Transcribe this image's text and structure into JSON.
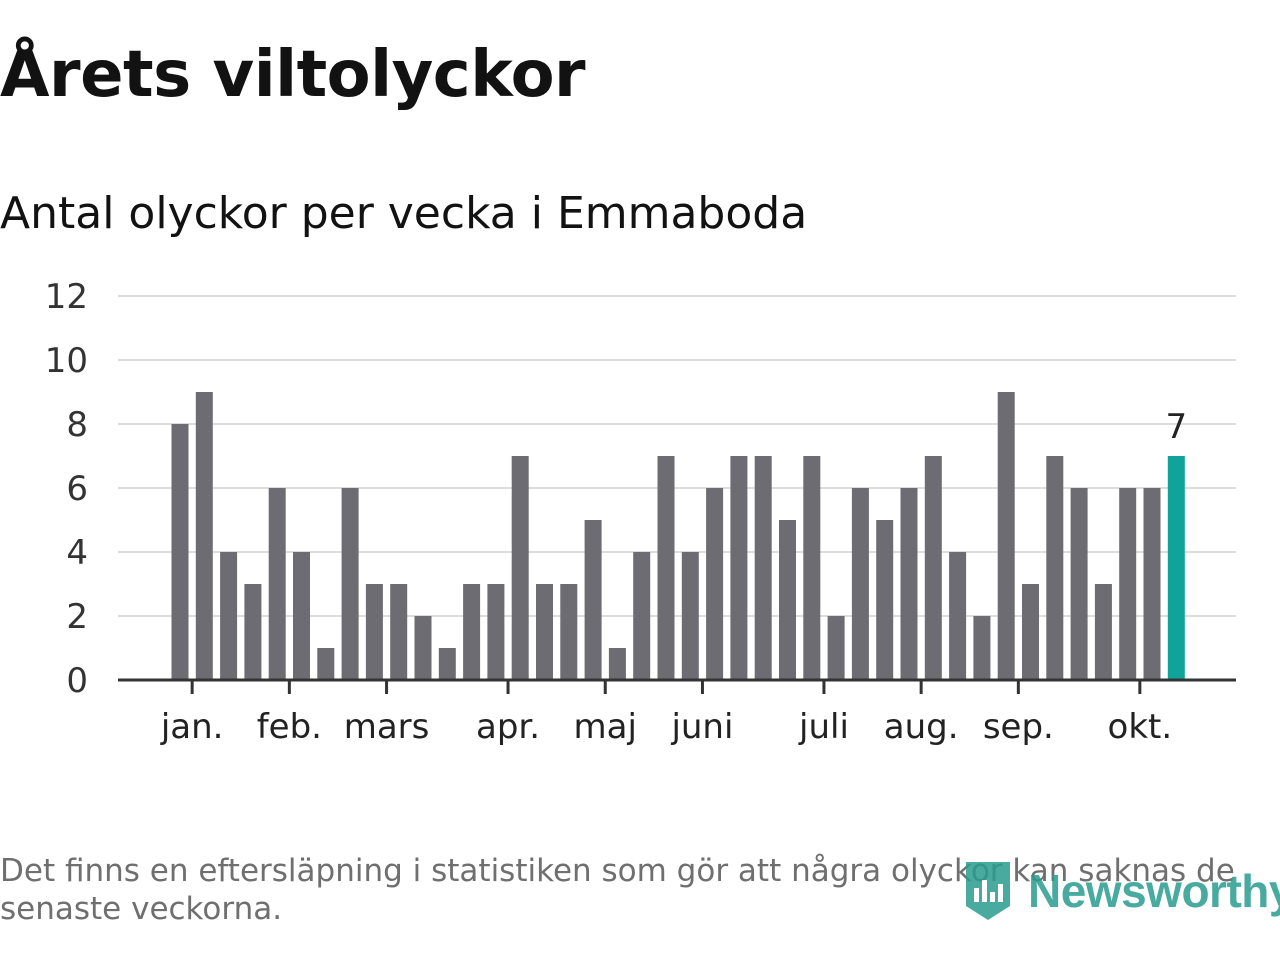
{
  "title": "Årets viltolyckor",
  "subtitle": "Antal olyckor per vecka i Emmaboda",
  "note": "Det finns en eftersläpning i statistiken som gör att några olyckor kan saknas de senaste veckorna.",
  "brand": "Newsworthy",
  "colors": {
    "bar": "#6d6c72",
    "highlight": "#0fa39a",
    "grid": "#dddddd",
    "axis": "#333333",
    "brand": "#2a9d8f"
  },
  "chart_data": {
    "type": "bar",
    "ylim": [
      0,
      12
    ],
    "yticks": [
      0,
      2,
      4,
      6,
      8,
      10,
      12
    ],
    "grid": true,
    "values": [
      8,
      9,
      4,
      3,
      6,
      4,
      1,
      6,
      3,
      3,
      2,
      1,
      3,
      3,
      7,
      3,
      3,
      5,
      1,
      4,
      7,
      4,
      6,
      7,
      7,
      5,
      7,
      2,
      6,
      5,
      6,
      7,
      4,
      2,
      9,
      3,
      7,
      6,
      3,
      6,
      6,
      7
    ],
    "highlight_index": 41,
    "highlight_label": "7",
    "month_ticks": [
      {
        "label": "jan.",
        "at": 0.5
      },
      {
        "label": "feb.",
        "at": 4.5
      },
      {
        "label": "mars",
        "at": 8.5
      },
      {
        "label": "apr.",
        "at": 13.5
      },
      {
        "label": "maj",
        "at": 17.5
      },
      {
        "label": "juni",
        "at": 21.5
      },
      {
        "label": "juli",
        "at": 26.5
      },
      {
        "label": "aug.",
        "at": 30.5
      },
      {
        "label": "sep.",
        "at": 34.5
      },
      {
        "label": "okt.",
        "at": 39.5
      }
    ]
  }
}
